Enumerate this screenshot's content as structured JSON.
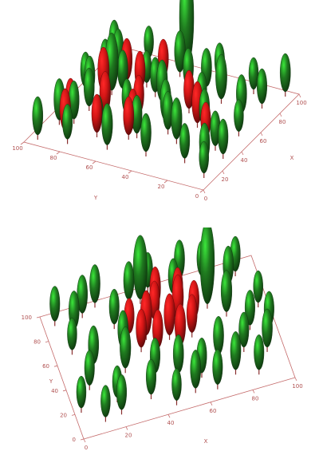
{
  "colors": {
    "healthy": "#1f7a1f",
    "infected": "#d11515",
    "axis": "#c46a6a",
    "trunk": "#8a3030"
  },
  "chart_data": [
    {
      "type": "scatter",
      "title": "",
      "xlabel": "X",
      "ylabel": "Y",
      "xlim": [
        0,
        100
      ],
      "ylim": [
        0,
        100
      ],
      "x_ticks": [
        "0",
        "20",
        "40",
        "60",
        "80",
        "100"
      ],
      "y_ticks": [
        "0",
        "20",
        "40",
        "60",
        "80",
        "100"
      ],
      "grid": false,
      "legend": "none",
      "series": [
        {
          "values": [
            [
              95,
              5,
              12
            ],
            [
              90,
              20,
              10
            ],
            [
              92,
              40,
              11
            ],
            [
              88,
              60,
              13
            ],
            [
              93,
              80,
              10
            ],
            [
              85,
              95,
              12
            ],
            [
              80,
              10,
              11
            ],
            [
              75,
              30,
              14
            ],
            [
              78,
              50,
              12
            ],
            [
              72,
              70,
              10
            ],
            [
              76,
              88,
              13
            ],
            [
              68,
              15,
              12
            ],
            [
              64,
              35,
              11
            ],
            [
              60,
              55,
              13
            ],
            [
              62,
              78,
              12
            ],
            [
              55,
              95,
              11
            ],
            [
              52,
              8,
              10
            ],
            [
              48,
              25,
              12
            ],
            [
              45,
              45,
              13
            ],
            [
              42,
              65,
              11
            ],
            [
              40,
              85,
              12
            ],
            [
              35,
              12,
              11
            ],
            [
              32,
              32,
              13
            ],
            [
              28,
              52,
              12
            ],
            [
              25,
              72,
              10
            ],
            [
              22,
              92,
              13
            ],
            [
              18,
              20,
              11
            ],
            [
              15,
              40,
              12
            ],
            [
              12,
              60,
              13
            ],
            [
              8,
              80,
              11
            ],
            [
              5,
              95,
              12
            ],
            [
              10,
              5,
              10
            ],
            [
              20,
              10,
              12
            ],
            [
              30,
              5,
              11
            ],
            [
              50,
              90,
              12
            ],
            [
              70,
              92,
              11
            ],
            [
              95,
              60,
              30
            ],
            [
              58,
              82,
              18
            ],
            [
              38,
              40,
              12
            ],
            [
              82,
              42,
              12
            ],
            [
              66,
              62,
              11
            ],
            [
              26,
              86,
              12
            ]
          ]
        },
        {
          "values": [
            [
              70,
              80,
              13
            ],
            [
              65,
              70,
              12
            ],
            [
              55,
              85,
              14
            ],
            [
              45,
              60,
              12
            ],
            [
              38,
              75,
              13
            ],
            [
              30,
              90,
              11
            ],
            [
              60,
              40,
              12
            ],
            [
              50,
              30,
              13
            ],
            [
              40,
              20,
              11
            ],
            [
              20,
              70,
              12
            ],
            [
              15,
              85,
              13
            ],
            [
              25,
              55,
              12
            ],
            [
              80,
              65,
              12
            ],
            [
              35,
              58,
              11
            ]
          ]
        }
      ]
    },
    {
      "type": "scatter",
      "title": "",
      "xlabel": "X",
      "ylabel": "Y",
      "xlim": [
        0,
        100
      ],
      "ylim": [
        0,
        100
      ],
      "x_ticks": [
        "0",
        "20",
        "40",
        "60",
        "80",
        "100"
      ],
      "y_ticks": [
        "0",
        "20",
        "40",
        "60",
        "80",
        "100"
      ],
      "grid": false,
      "legend": "none",
      "series": [
        {
          "values": [
            [
              5,
              90,
              11
            ],
            [
              12,
              80,
              12
            ],
            [
              8,
              65,
              10
            ],
            [
              15,
              50,
              12
            ],
            [
              10,
              35,
              11
            ],
            [
              20,
              20,
              10
            ],
            [
              25,
              95,
              12
            ],
            [
              30,
              75,
              11
            ],
            [
              28,
              40,
              13
            ],
            [
              35,
              15,
              11
            ],
            [
              45,
              5,
              10
            ],
            [
              55,
              10,
              12
            ],
            [
              65,
              8,
              11
            ],
            [
              75,
              15,
              12
            ],
            [
              85,
              10,
              11
            ],
            [
              92,
              25,
              12
            ],
            [
              88,
              45,
              11
            ],
            [
              95,
              60,
              10
            ],
            [
              85,
              80,
              12
            ],
            [
              75,
              92,
              11
            ],
            [
              65,
              95,
              12
            ],
            [
              50,
              95,
              11
            ],
            [
              40,
              90,
              12
            ],
            [
              20,
              10,
              11
            ],
            [
              70,
              30,
              12
            ],
            [
              80,
              60,
              13
            ],
            [
              60,
              20,
              11
            ],
            [
              90,
              88,
              11
            ],
            [
              3,
              20,
              10
            ],
            [
              18,
              90,
              12
            ],
            [
              40,
              30,
              11
            ],
            [
              50,
              25,
              12
            ],
            [
              73,
              70,
              26
            ],
            [
              45,
              88,
              20
            ],
            [
              30,
              55,
              12
            ],
            [
              82,
              30,
              11
            ],
            [
              96,
              40,
              11
            ],
            [
              60,
              85,
              11
            ],
            [
              12,
              8,
              10
            ]
          ]
        },
        {
          "values": [
            [
              42,
              60,
              14
            ],
            [
              48,
              70,
              12
            ],
            [
              52,
              55,
              13
            ],
            [
              58,
              65,
              14
            ],
            [
              45,
              48,
              12
            ],
            [
              55,
              45,
              13
            ],
            [
              62,
              52,
              12
            ],
            [
              38,
              52,
              12
            ],
            [
              50,
              78,
              13
            ],
            [
              65,
              62,
              12
            ],
            [
              35,
              65,
              11
            ],
            [
              60,
              75,
              12
            ]
          ]
        }
      ]
    }
  ]
}
